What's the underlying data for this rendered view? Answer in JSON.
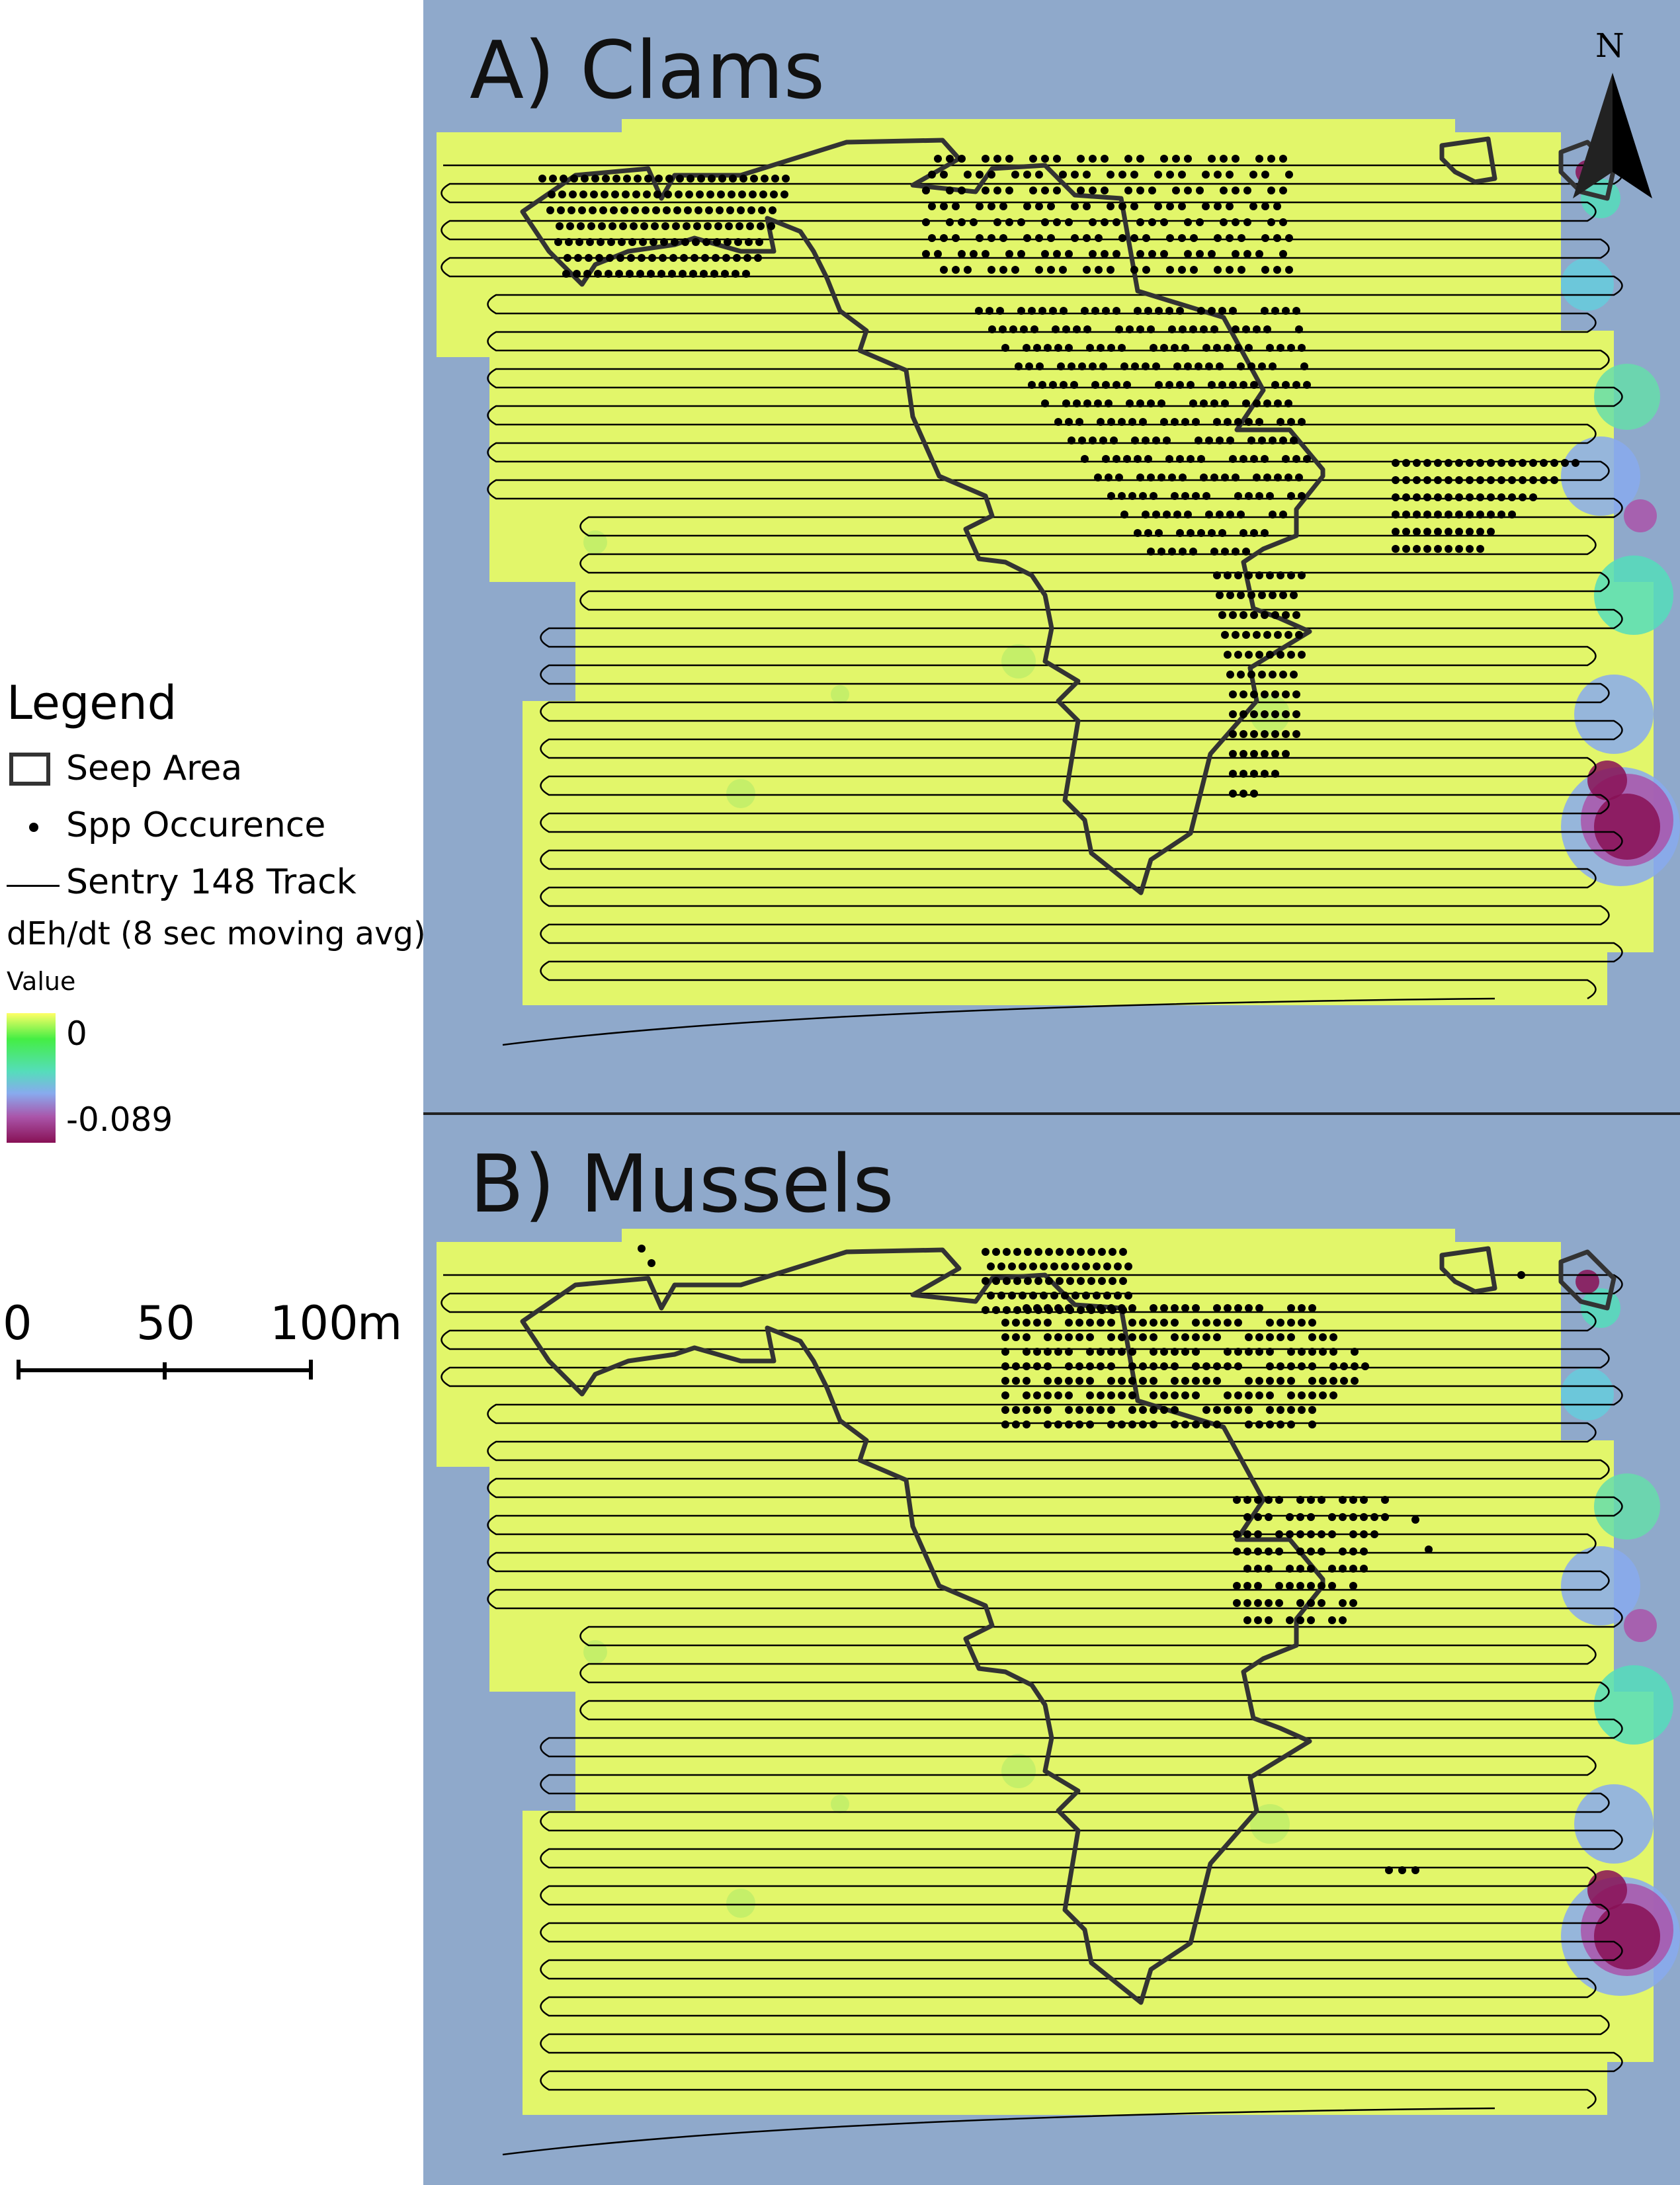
{
  "panels": [
    {
      "title": "A) Clams"
    },
    {
      "title": "B) Mussels"
    }
  ],
  "north_arrow": {
    "label": "N"
  },
  "legend": {
    "title": "Legend",
    "items": [
      {
        "label": "Seep Area",
        "symbol": "polygon-outline"
      },
      {
        "label": "Spp Occurence",
        "symbol": "dot"
      },
      {
        "label": "Sentry 148 Track",
        "symbol": "line"
      }
    ],
    "raster": {
      "title": "dEh/dt (8 sec moving avg)",
      "value_label": "Value",
      "max": "0",
      "min": "-0.089",
      "ramp_colors": [
        "#ffff66",
        "#44ee44",
        "#55ddbb",
        "#88aaee",
        "#aa55aa",
        "#881155"
      ]
    }
  },
  "scale_bar": {
    "ticks": [
      "0",
      "50",
      "100"
    ],
    "unit": "m"
  },
  "colors": {
    "water": "#8fa9cb",
    "survey_area": "#e2f66a",
    "polygon_outline": "#333333",
    "track": "#000000",
    "occurrence": "#000000",
    "anomaly_low": "#881155"
  }
}
